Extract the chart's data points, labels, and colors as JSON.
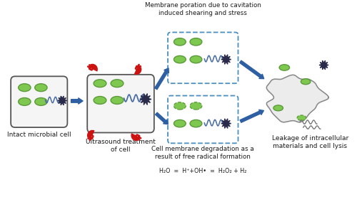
{
  "bg_color": "#ffffff",
  "arrow_color": "#2e5fa3",
  "cell_fill": "#7ec850",
  "cell_outline": "#5a9a3a",
  "box_outline": "#555555",
  "dashed_box_color": "#4a8fbf",
  "red_color": "#cc1111",
  "text_color": "#1a1a1a",
  "wave_color": "#4a6fa5",
  "blast_color": "#2a2a4a",
  "gray_blob": "#aaaaaa",
  "title_intact": "Intact microbial cell",
  "title_ultrasound": "Ultrasound treatment\nof cell",
  "title_membrane_poration": "Membrane poration due to cavitation\ninduced shearing and stress",
  "title_membrane_degradation": "Cell membrane degradation as a\nresult of free radical formation",
  "formula": "H₂O  =  H⁺+OH•  =  H₂O₂ + H₂",
  "title_leakage": "Leakage of intracellular\nmaterials and cell lysis"
}
